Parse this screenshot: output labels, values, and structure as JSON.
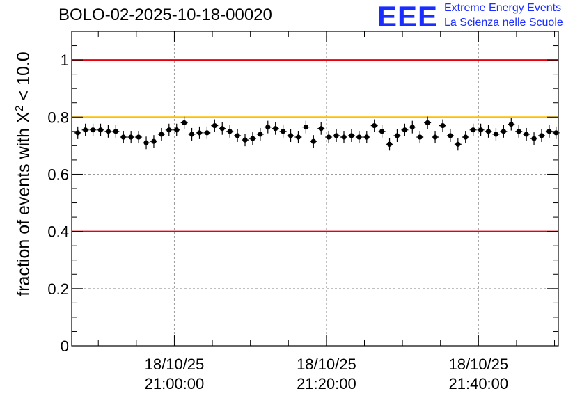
{
  "header": {
    "title": "BOLO-02-2025-10-18-00020",
    "logo_mark": "EEE",
    "logo_line1": "Extreme Energy Events",
    "logo_line2": "La Scienza nelle Scuole"
  },
  "chart_data": {
    "type": "scatter",
    "title": "BOLO-02-2025-10-18-00020",
    "xlabel": "",
    "ylabel": "fraction of events with X² < 10.0",
    "ylabel_main": "fraction of events with X",
    "ylabel_sup": "2",
    "ylabel_tail": " < 10.0",
    "ylim": [
      0,
      1.1
    ],
    "yticks": [
      0,
      0.2,
      0.4,
      0.6,
      0.8,
      1
    ],
    "ytick_labels": [
      "0",
      "0.2",
      "0.4",
      "0.6",
      "0.8",
      "1"
    ],
    "x_unit": "minutes relative to 18/10/25 21:00:00",
    "xlim": [
      -13.5,
      50.5
    ],
    "xticks": [
      0,
      20,
      40
    ],
    "xtick_labels": [
      [
        "18/10/25",
        "21:00:00"
      ],
      [
        "18/10/25",
        "21:20:00"
      ],
      [
        "18/10/25",
        "21:40:00"
      ]
    ],
    "grid": true,
    "reference_lines": [
      {
        "y": 1.0,
        "color": "#e8000f"
      },
      {
        "y": 0.8,
        "color": "#ffc000"
      },
      {
        "y": 0.4,
        "color": "#e8000f"
      }
    ],
    "marker_color": "#000000",
    "x": [
      -12.7,
      -11.7,
      -10.7,
      -9.7,
      -8.7,
      -7.7,
      -6.7,
      -5.7,
      -4.7,
      -3.7,
      -2.7,
      -1.7,
      -0.7,
      0.3,
      1.3,
      2.3,
      3.3,
      4.3,
      5.3,
      6.3,
      7.3,
      8.3,
      9.3,
      10.3,
      11.3,
      12.3,
      13.3,
      14.3,
      15.3,
      16.3,
      17.3,
      18.3,
      19.3,
      20.3,
      21.3,
      22.3,
      23.3,
      24.3,
      25.3,
      26.3,
      27.3,
      28.3,
      29.3,
      30.3,
      31.3,
      32.3,
      33.3,
      34.3,
      35.3,
      36.3,
      37.3,
      38.3,
      39.3,
      40.3,
      41.3,
      42.3,
      43.3,
      44.3,
      45.3,
      46.3,
      47.3,
      48.3,
      49.3,
      50.2
    ],
    "values": [
      0.745,
      0.755,
      0.755,
      0.755,
      0.75,
      0.75,
      0.73,
      0.73,
      0.73,
      0.71,
      0.715,
      0.74,
      0.755,
      0.755,
      0.78,
      0.74,
      0.745,
      0.745,
      0.77,
      0.76,
      0.75,
      0.735,
      0.72,
      0.725,
      0.74,
      0.765,
      0.76,
      0.75,
      0.735,
      0.73,
      0.765,
      0.715,
      0.76,
      0.73,
      0.735,
      0.73,
      0.735,
      0.73,
      0.73,
      0.77,
      0.75,
      0.705,
      0.735,
      0.755,
      0.765,
      0.73,
      0.78,
      0.73,
      0.77,
      0.735,
      0.705,
      0.73,
      0.755,
      0.755,
      0.75,
      0.74,
      0.75,
      0.775,
      0.75,
      0.74,
      0.725,
      0.735,
      0.75,
      0.745
    ]
  }
}
